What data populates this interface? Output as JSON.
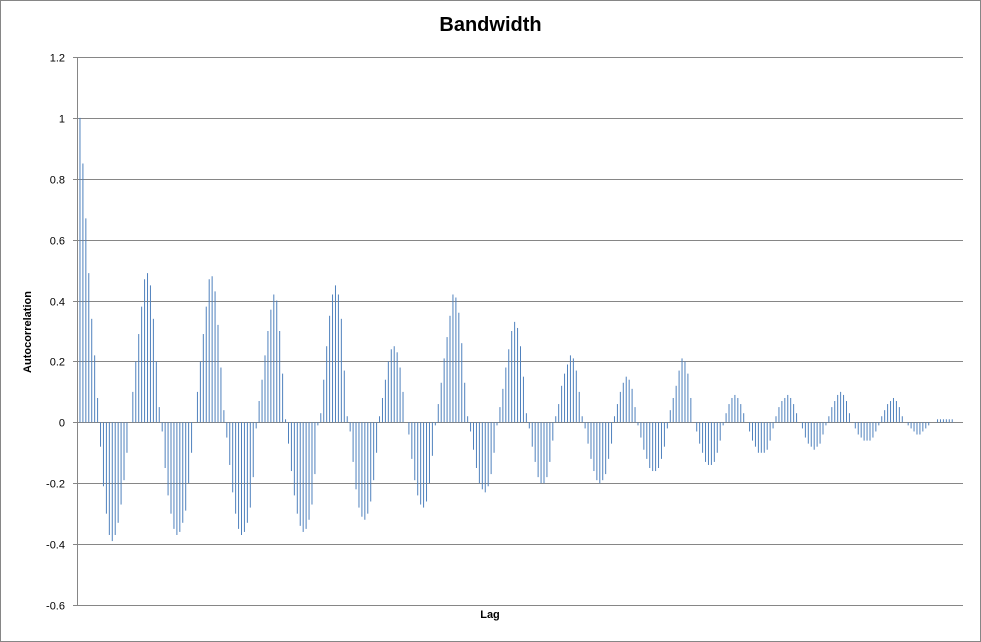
{
  "chart_data": {
    "type": "bar",
    "title": "Bandwidth",
    "xlabel": "Lag",
    "ylabel": "Autocorrelation",
    "ylim": [
      -0.6,
      1.2
    ],
    "yticks": [
      "1.2",
      "1",
      "0.8",
      "0.6",
      "0.4",
      "0.2",
      "0",
      "-0.2",
      "-0.4",
      "-0.6"
    ],
    "grid": true,
    "legend": "none",
    "bar_color": "#4f81bd",
    "grid_color": "#868686",
    "series": [
      {
        "values": [
          1.0,
          0.85,
          0.67,
          0.49,
          0.34,
          0.22,
          0.08,
          -0.08,
          -0.21,
          -0.3,
          -0.37,
          -0.39,
          -0.37,
          -0.33,
          -0.27,
          -0.19,
          -0.1,
          0.0,
          0.1,
          0.2,
          0.29,
          0.38,
          0.47,
          0.49,
          0.45,
          0.34,
          0.2,
          0.05,
          -0.03,
          -0.15,
          -0.24,
          -0.3,
          -0.35,
          -0.37,
          -0.36,
          -0.33,
          -0.29,
          -0.2,
          -0.1,
          0.0,
          0.1,
          0.2,
          0.29,
          0.38,
          0.47,
          0.48,
          0.43,
          0.32,
          0.18,
          0.04,
          -0.05,
          -0.14,
          -0.23,
          -0.3,
          -0.35,
          -0.37,
          -0.36,
          -0.33,
          -0.28,
          -0.18,
          -0.02,
          0.07,
          0.14,
          0.22,
          0.3,
          0.37,
          0.42,
          0.4,
          0.3,
          0.16,
          0.01,
          -0.07,
          -0.16,
          -0.24,
          -0.3,
          -0.34,
          -0.36,
          -0.35,
          -0.32,
          -0.27,
          -0.17,
          -0.01,
          0.03,
          0.14,
          0.25,
          0.35,
          0.42,
          0.45,
          0.42,
          0.34,
          0.17,
          0.02,
          -0.03,
          -0.13,
          -0.22,
          -0.28,
          -0.31,
          -0.32,
          -0.3,
          -0.26,
          -0.19,
          -0.1,
          0.02,
          0.08,
          0.14,
          0.2,
          0.24,
          0.25,
          0.23,
          0.18,
          0.1,
          0.0,
          -0.04,
          -0.12,
          -0.19,
          -0.24,
          -0.27,
          -0.28,
          -0.26,
          -0.2,
          -0.11,
          -0.01,
          0.06,
          0.13,
          0.21,
          0.28,
          0.35,
          0.42,
          0.41,
          0.36,
          0.26,
          0.13,
          0.02,
          -0.03,
          -0.09,
          -0.15,
          -0.2,
          -0.22,
          -0.23,
          -0.21,
          -0.17,
          -0.1,
          -0.01,
          0.05,
          0.11,
          0.18,
          0.24,
          0.3,
          0.33,
          0.31,
          0.25,
          0.15,
          0.03,
          -0.02,
          -0.08,
          -0.13,
          -0.18,
          -0.2,
          -0.2,
          -0.18,
          -0.13,
          -0.06,
          0.02,
          0.06,
          0.12,
          0.16,
          0.19,
          0.22,
          0.21,
          0.17,
          0.1,
          0.02,
          -0.02,
          -0.07,
          -0.12,
          -0.16,
          -0.19,
          -0.2,
          -0.19,
          -0.17,
          -0.12,
          -0.07,
          0.02,
          0.06,
          0.1,
          0.13,
          0.15,
          0.14,
          0.11,
          0.05,
          -0.01,
          -0.05,
          -0.09,
          -0.12,
          -0.15,
          -0.16,
          -0.16,
          -0.15,
          -0.12,
          -0.08,
          -0.02,
          0.04,
          0.08,
          0.12,
          0.17,
          0.21,
          0.2,
          0.16,
          0.08,
          0.0,
          -0.03,
          -0.07,
          -0.1,
          -0.13,
          -0.14,
          -0.14,
          -0.13,
          -0.1,
          -0.06,
          -0.01,
          0.03,
          0.06,
          0.08,
          0.09,
          0.08,
          0.06,
          0.03,
          0.0,
          -0.03,
          -0.06,
          -0.08,
          -0.1,
          -0.1,
          -0.1,
          -0.09,
          -0.06,
          -0.02,
          0.02,
          0.05,
          0.07,
          0.08,
          0.09,
          0.08,
          0.06,
          0.03,
          0.0,
          -0.02,
          -0.05,
          -0.07,
          -0.08,
          -0.09,
          -0.08,
          -0.07,
          -0.04,
          -0.01,
          0.02,
          0.05,
          0.07,
          0.09,
          0.1,
          0.09,
          0.07,
          0.03,
          0.0,
          -0.02,
          -0.04,
          -0.05,
          -0.06,
          -0.06,
          -0.06,
          -0.05,
          -0.03,
          -0.01,
          0.02,
          0.04,
          0.06,
          0.07,
          0.08,
          0.07,
          0.05,
          0.02,
          0.0,
          -0.01,
          -0.02,
          -0.03,
          -0.04,
          -0.04,
          -0.03,
          -0.02,
          -0.01,
          0.0,
          0.0,
          0.01,
          0.01,
          0.01,
          0.01,
          0.01,
          0.01,
          0.0,
          0.0,
          0.0
        ]
      }
    ]
  }
}
